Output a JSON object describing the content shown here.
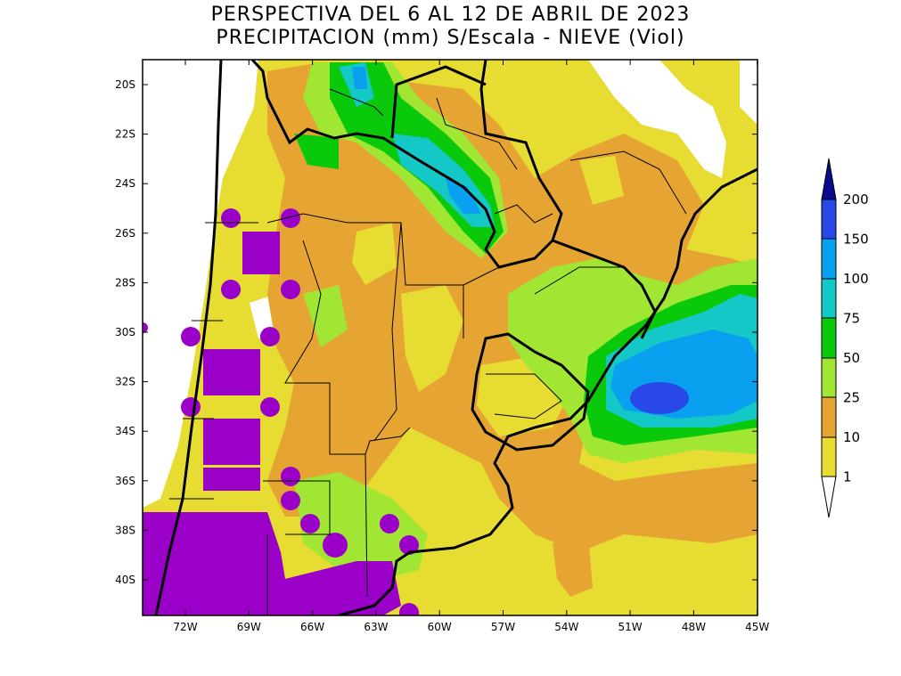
{
  "title_line1": "PERSPECTIVA DEL 6 AL 12 DE ABRIL DE 2023",
  "title_line2": "PRECIPITACION (mm) S/Escala - NIEVE (Viol)",
  "map": {
    "lat_labels": [
      "20S",
      "22S",
      "24S",
      "26S",
      "28S",
      "30S",
      "32S",
      "34S",
      "36S",
      "38S",
      "40S"
    ],
    "lon_labels": [
      "72W",
      "69W",
      "66W",
      "63W",
      "60W",
      "57W",
      "54W",
      "51W",
      "48W",
      "45W"
    ]
  },
  "legend": {
    "levels": [
      "200",
      "150",
      "100",
      "75",
      "50",
      "25",
      "10",
      "1"
    ],
    "colors": {
      "gt200": "#0a0a8c",
      "b150_200": "#2848e8",
      "b100_150": "#0aa0f0",
      "b75_100": "#14c8c8",
      "b50_75": "#0ac80a",
      "b25_50": "#a0e632",
      "b10_25": "#e6a532",
      "b1_10": "#e6dc32",
      "lt1": "#ffffff",
      "snow": "#9b00c8"
    }
  }
}
